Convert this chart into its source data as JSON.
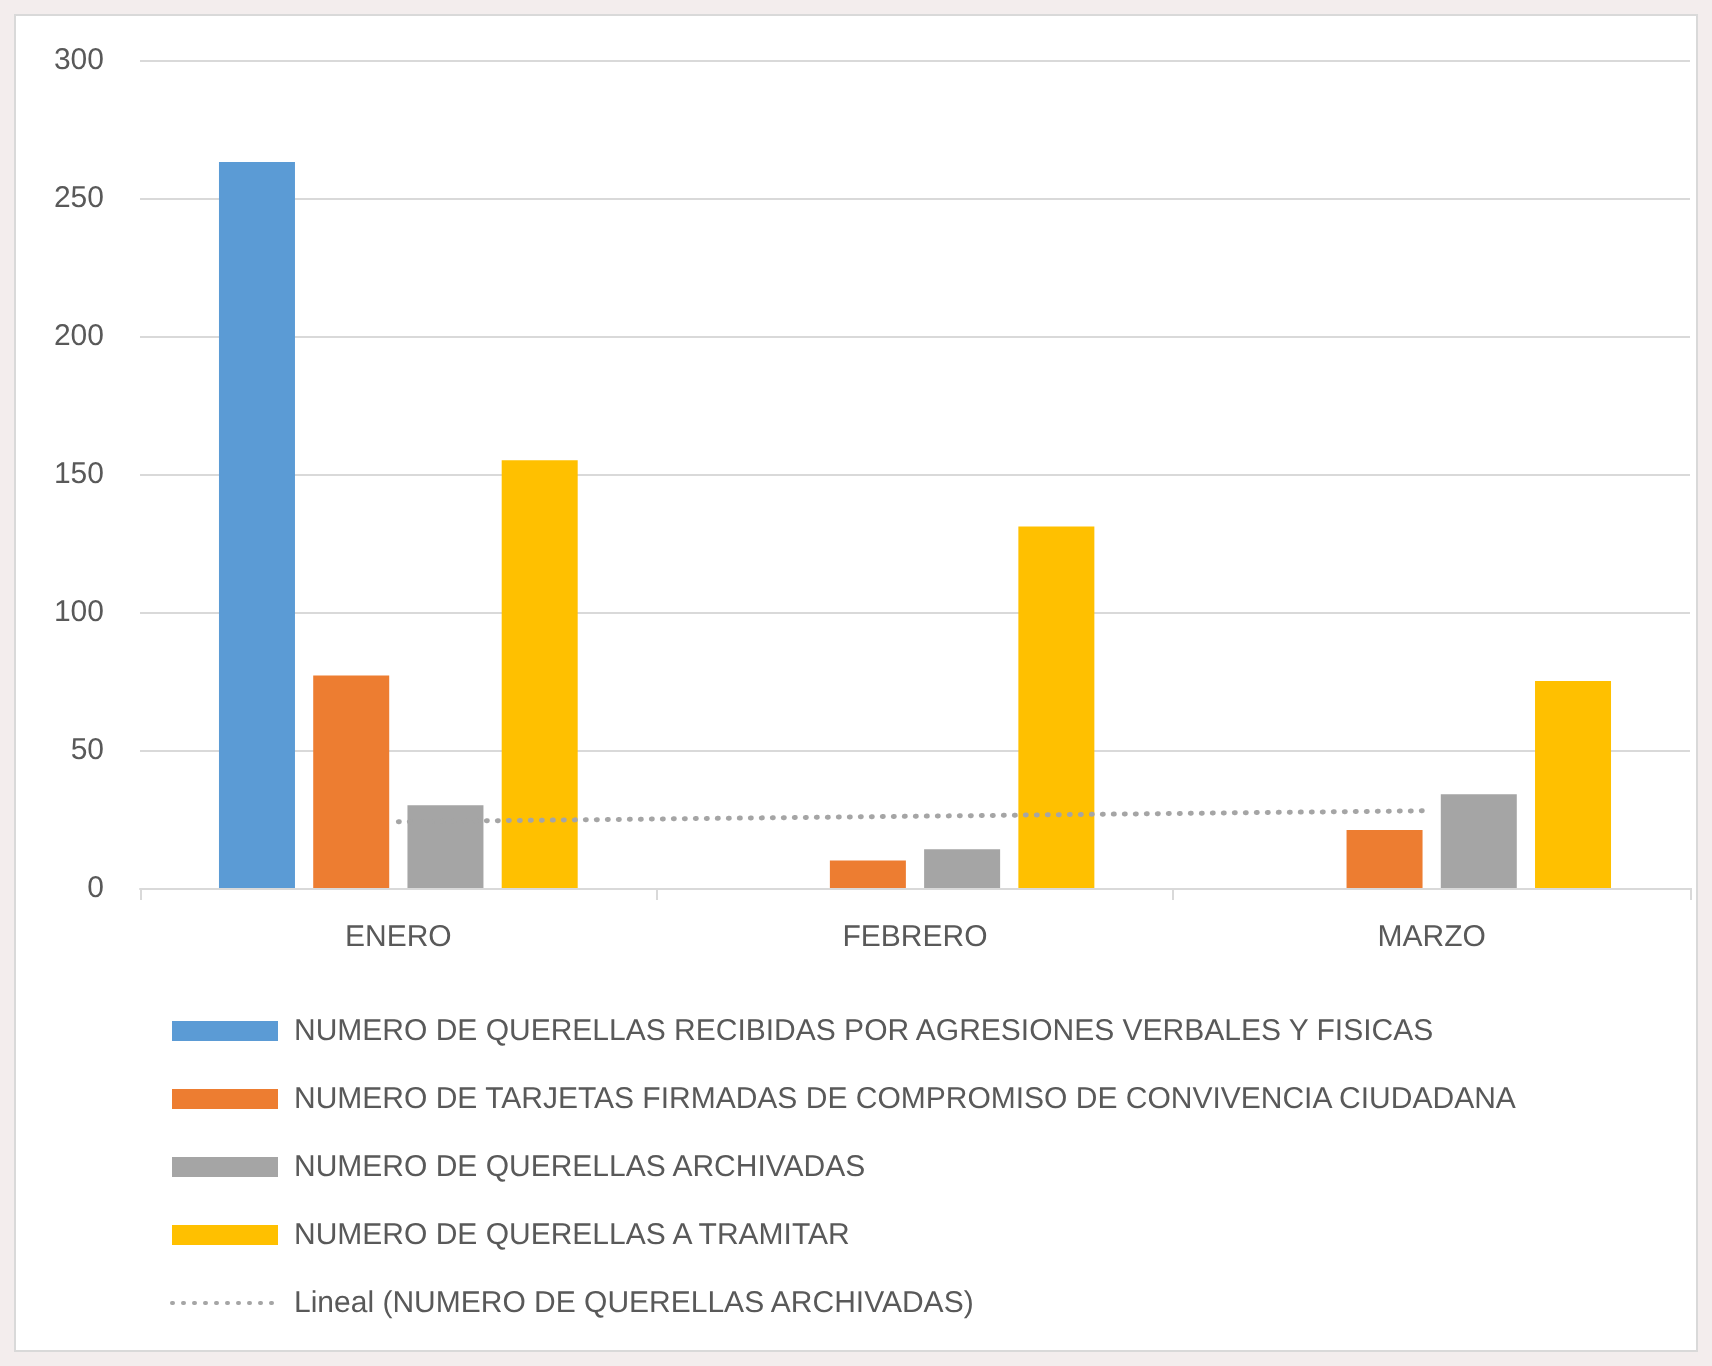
{
  "chart_data": {
    "type": "bar",
    "categories": [
      "ENERO",
      "FEBRERO",
      "MARZO"
    ],
    "series": [
      {
        "name": "NUMERO DE QUERELLAS RECIBIDAS POR AGRESIONES VERBALES Y FISICAS",
        "color": "#5b9bd5",
        "values": [
          263,
          null,
          null
        ]
      },
      {
        "name": "NUMERO DE TARJETAS FIRMADAS DE COMPROMISO DE CONVIVENCIA CIUDADANA",
        "color": "#ed7d31",
        "values": [
          77,
          10,
          21
        ]
      },
      {
        "name": "NUMERO DE QUERELLAS ARCHIVADAS",
        "color": "#a5a5a5",
        "values": [
          30,
          14,
          34
        ]
      },
      {
        "name": "NUMERO DE QUERELLAS A TRAMITAR",
        "color": "#ffc000",
        "values": [
          155,
          131,
          75
        ]
      },
      {
        "name": "Lineal (NUMERO DE QUERELLAS ARCHIVADAS)",
        "type": "line",
        "color": "#a5a5a5",
        "values": [
          24,
          26,
          28
        ],
        "line_style": "dotted",
        "marker": "none"
      }
    ],
    "ylim": [
      0,
      300
    ],
    "yticks": [
      0,
      50,
      100,
      150,
      200,
      250,
      300
    ],
    "grid": "y",
    "legend": "bottom"
  }
}
